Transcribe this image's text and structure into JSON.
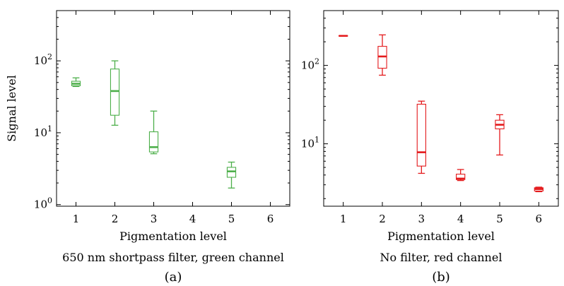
{
  "chart_data": [
    {
      "panel": "a",
      "type": "box",
      "color": "#4daf4a",
      "title": "650 nm shortpass filter, green channel",
      "caption": "(a)",
      "xlabel": "Pigmentation level",
      "ylabel": "Signal level",
      "yscale": "log",
      "ylim": [
        0.95,
        500
      ],
      "xlim": [
        0.5,
        6.5
      ],
      "x_ticks": [
        "1",
        "2",
        "3",
        "4",
        "5",
        "6"
      ],
      "y_tick_labels": [
        "10^0",
        "10^1",
        "10^2"
      ],
      "boxes": [
        {
          "level": 1,
          "whisker_low": 44,
          "q1": 45,
          "median": 48,
          "q3": 52,
          "whisker_high": 58
        },
        {
          "level": 2,
          "whisker_low": 12.7,
          "q1": 17.5,
          "median": 38,
          "q3": 77,
          "whisker_high": 100
        },
        {
          "level": 3,
          "whisker_low": 5.1,
          "q1": 5.4,
          "median": 6.3,
          "q3": 10.3,
          "whisker_high": 20
        },
        {
          "level": 5,
          "whisker_low": 1.7,
          "q1": 2.4,
          "median": 2.9,
          "q3": 3.3,
          "whisker_high": 3.9
        }
      ]
    },
    {
      "panel": "b",
      "type": "box",
      "color": "#e41a1c",
      "title": "No filter, red channel",
      "caption": "(b)",
      "xlabel": "Pigmentation level",
      "ylabel": "",
      "yscale": "log",
      "ylim": [
        1.6,
        500
      ],
      "xlim": [
        0.5,
        6.5
      ],
      "x_ticks": [
        "1",
        "2",
        "3",
        "4",
        "5",
        "6"
      ],
      "y_tick_labels": [
        "10^1",
        "10^2"
      ],
      "boxes": [
        {
          "level": 1,
          "whisker_low": 236,
          "q1": 236,
          "median": 238,
          "q3": 240,
          "whisker_high": 241
        },
        {
          "level": 2,
          "whisker_low": 75,
          "q1": 92,
          "median": 130,
          "q3": 175,
          "whisker_high": 245
        },
        {
          "level": 3,
          "whisker_low": 4.2,
          "q1": 5.2,
          "median": 7.8,
          "q3": 32,
          "whisker_high": 35
        },
        {
          "level": 4,
          "whisker_low": 3.4,
          "q1": 3.5,
          "median": 3.6,
          "q3": 4.1,
          "whisker_high": 4.7
        },
        {
          "level": 5,
          "whisker_low": 7.2,
          "q1": 15.5,
          "median": 17.5,
          "q3": 20,
          "whisker_high": 23.5
        },
        {
          "level": 6,
          "whisker_low": 2.45,
          "q1": 2.5,
          "median": 2.65,
          "q3": 2.75,
          "whisker_high": 2.8
        }
      ]
    }
  ]
}
